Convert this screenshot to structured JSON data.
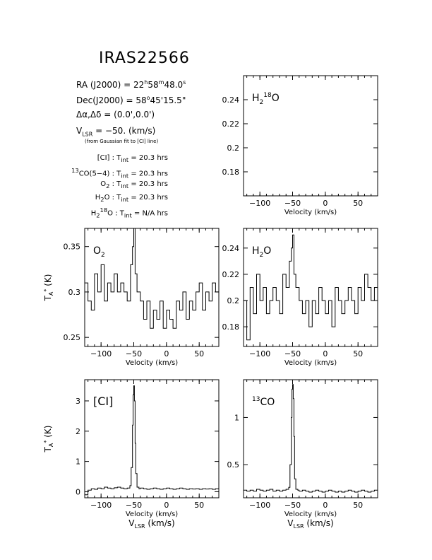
{
  "header": {
    "title": "IRAS22566",
    "ra": {
      "lbl": "RA (J2000)  =  22",
      "h": "h",
      "a": "58",
      "m": "m",
      "b": "48.0",
      "s": "s"
    },
    "dec": {
      "lbl": "Dec(J2000)  =  58",
      "deg": "o",
      "rest": "45'15.5\""
    },
    "offset": "Δα,Δδ  =  (0.0',0.0')",
    "vlsr": {
      "v": "V",
      "sub": "LSR",
      "rest": "  = −50. (km/s)"
    },
    "vlsr_note": "(from Gaussian fit to [CI] line)",
    "tint": [
      {
        "pre": "",
        "sup": "",
        "name": "[CI]",
        "sub": "",
        "val": "20.3 hrs"
      },
      {
        "pre": "13",
        "sup": "",
        "name": "CO(5−4)",
        "sub": "",
        "val": "20.3 hrs"
      },
      {
        "pre": "",
        "sup": "",
        "name": "O",
        "sub": "2",
        "val": "20.3 hrs"
      },
      {
        "pre": "",
        "sup": "",
        "name": "H",
        "sub": "2",
        "post": "O",
        "val": "20.3 hrs"
      },
      {
        "pre": "",
        "sup": "18",
        "name": "H",
        "sub": "2",
        "post": "O",
        "val": "N/A hrs"
      }
    ],
    "tint_label": "T",
    "tint_sub": "int",
    "tint_eq": " = "
  },
  "chart_data": [
    {
      "type": "line",
      "name": "H2 18O",
      "label_html": [
        "H",
        "2",
        "18",
        "O"
      ],
      "xlim": [
        -125,
        80
      ],
      "ylim": [
        0.16,
        0.26
      ],
      "xticks": [
        -100,
        -50,
        0,
        50
      ],
      "xtick_labels": [
        "−100",
        "−50",
        "0",
        "50"
      ],
      "yticks": [
        0.18,
        0.2,
        0.22,
        0.24
      ],
      "ytick_labels": [
        "0.18",
        "0.2",
        "0.22",
        "0.24"
      ],
      "xlabel": "Velocity (km/s)",
      "ylabel": "",
      "x": [],
      "y": []
    },
    {
      "type": "line",
      "name": "O2",
      "label_html": [
        "O",
        "2",
        "",
        ""
      ],
      "xlim": [
        -125,
        80
      ],
      "ylim": [
        0.24,
        0.37
      ],
      "xticks": [
        -100,
        -50,
        0,
        50
      ],
      "xtick_labels": [
        "−100",
        "−50",
        "0",
        "50"
      ],
      "yticks": [
        0.25,
        0.3,
        0.35
      ],
      "ytick_labels": [
        "0.25",
        "0.3",
        "0.35"
      ],
      "xlabel": "Velocity (km/s)",
      "ylabel": "T_A* (K)",
      "x": [
        -125,
        -120,
        -115,
        -110,
        -105,
        -100,
        -95,
        -90,
        -85,
        -80,
        -75,
        -70,
        -65,
        -60,
        -55,
        -52,
        -50,
        -48,
        -45,
        -40,
        -35,
        -30,
        -25,
        -20,
        -15,
        -10,
        -5,
        0,
        5,
        10,
        15,
        20,
        25,
        30,
        35,
        40,
        45,
        50,
        55,
        60,
        65,
        70,
        75,
        80
      ],
      "y": [
        0.31,
        0.29,
        0.28,
        0.32,
        0.3,
        0.33,
        0.29,
        0.31,
        0.3,
        0.32,
        0.3,
        0.31,
        0.3,
        0.29,
        0.33,
        0.35,
        0.37,
        0.32,
        0.3,
        0.29,
        0.27,
        0.29,
        0.26,
        0.28,
        0.27,
        0.29,
        0.26,
        0.28,
        0.27,
        0.26,
        0.29,
        0.28,
        0.3,
        0.27,
        0.29,
        0.28,
        0.3,
        0.31,
        0.28,
        0.3,
        0.29,
        0.31,
        0.3,
        0.29
      ]
    },
    {
      "type": "line",
      "name": "H2O",
      "label_html": [
        "H",
        "2",
        "",
        "O"
      ],
      "xlim": [
        -125,
        80
      ],
      "ylim": [
        0.165,
        0.255
      ],
      "xticks": [
        -100,
        -50,
        0,
        50
      ],
      "xtick_labels": [
        "−100",
        "−50",
        "0",
        "50"
      ],
      "yticks": [
        0.18,
        0.2,
        0.22,
        0.24
      ],
      "ytick_labels": [
        "0.18",
        "0.2",
        "0.22",
        "0.24"
      ],
      "xlabel": "Velocity (km/s)",
      "ylabel": "",
      "x": [
        -125,
        -120,
        -115,
        -110,
        -105,
        -100,
        -95,
        -90,
        -85,
        -80,
        -75,
        -70,
        -65,
        -60,
        -55,
        -52,
        -50,
        -48,
        -45,
        -40,
        -35,
        -30,
        -25,
        -20,
        -15,
        -10,
        -5,
        0,
        5,
        10,
        15,
        20,
        25,
        30,
        35,
        40,
        45,
        50,
        55,
        60,
        65,
        70,
        75,
        80
      ],
      "y": [
        0.2,
        0.17,
        0.21,
        0.19,
        0.22,
        0.2,
        0.21,
        0.19,
        0.2,
        0.21,
        0.2,
        0.19,
        0.22,
        0.21,
        0.23,
        0.24,
        0.25,
        0.22,
        0.21,
        0.2,
        0.19,
        0.2,
        0.18,
        0.2,
        0.19,
        0.21,
        0.2,
        0.19,
        0.2,
        0.18,
        0.21,
        0.2,
        0.19,
        0.2,
        0.21,
        0.2,
        0.19,
        0.21,
        0.2,
        0.22,
        0.21,
        0.2,
        0.21,
        0.22
      ]
    },
    {
      "type": "line",
      "name": "[CI]",
      "label_html": [
        "[CI]",
        "",
        "",
        ""
      ],
      "xlim": [
        -125,
        80
      ],
      "ylim": [
        -0.2,
        3.7
      ],
      "xticks": [
        -100,
        -50,
        0,
        50
      ],
      "xtick_labels": [
        "−100",
        "−50",
        "0",
        "50"
      ],
      "yticks": [
        0,
        1,
        2,
        3
      ],
      "ytick_labels": [
        "0",
        "1",
        "2",
        "3"
      ],
      "xlabel": "Velocity (km/s)",
      "xlabel2": "V_LSR (km/s)",
      "ylabel": "T_A* (K)",
      "x": [
        -125,
        -122,
        -120,
        -115,
        -110,
        -105,
        -100,
        -95,
        -90,
        -85,
        -80,
        -75,
        -70,
        -65,
        -60,
        -56,
        -54,
        -52,
        -51,
        -50,
        -49,
        -48,
        -47,
        -45,
        -42,
        -40,
        -35,
        -30,
        -25,
        -20,
        -15,
        -10,
        -5,
        0,
        5,
        10,
        15,
        20,
        25,
        30,
        35,
        40,
        45,
        50,
        55,
        60,
        65,
        70,
        75,
        80
      ],
      "y": [
        -0.1,
        -0.1,
        0.05,
        0.1,
        0.08,
        0.12,
        0.1,
        0.15,
        0.12,
        0.1,
        0.13,
        0.15,
        0.12,
        0.1,
        0.12,
        0.2,
        0.8,
        2.2,
        3.2,
        3.5,
        3.0,
        1.6,
        0.6,
        0.15,
        0.1,
        0.12,
        0.1,
        0.08,
        0.1,
        0.12,
        0.1,
        0.08,
        0.1,
        0.12,
        0.1,
        0.08,
        0.1,
        0.12,
        0.1,
        0.08,
        0.1,
        0.09,
        0.1,
        0.08,
        0.1,
        0.09,
        0.1,
        0.08,
        0.1,
        0.12
      ]
    },
    {
      "type": "line",
      "name": "13CO",
      "label_html": [
        "",
        "",
        "13",
        "CO"
      ],
      "xlim": [
        -125,
        80
      ],
      "ylim": [
        0.15,
        1.4
      ],
      "xticks": [
        -100,
        -50,
        0,
        50
      ],
      "xtick_labels": [
        "−100",
        "−50",
        "0",
        "50"
      ],
      "yticks": [
        0.5,
        1
      ],
      "ytick_labels": [
        "0.5",
        "1"
      ],
      "xlabel": "Velocity (km/s)",
      "xlabel2": "V_LSR (km/s)",
      "ylabel": "",
      "x": [
        -125,
        -120,
        -115,
        -110,
        -105,
        -100,
        -95,
        -90,
        -85,
        -80,
        -75,
        -70,
        -65,
        -60,
        -56,
        -54,
        -52,
        -51,
        -50,
        -49,
        -48,
        -47,
        -45,
        -42,
        -40,
        -35,
        -30,
        -25,
        -20,
        -15,
        -10,
        -5,
        0,
        5,
        10,
        15,
        20,
        25,
        30,
        35,
        40,
        45,
        50,
        55,
        60,
        65,
        70,
        75,
        80
      ],
      "y": [
        0.23,
        0.22,
        0.23,
        0.22,
        0.24,
        0.23,
        0.22,
        0.23,
        0.24,
        0.22,
        0.23,
        0.22,
        0.23,
        0.24,
        0.26,
        0.5,
        1.0,
        1.3,
        1.35,
        1.2,
        0.8,
        0.35,
        0.24,
        0.23,
        0.22,
        0.23,
        0.22,
        0.21,
        0.22,
        0.23,
        0.22,
        0.21,
        0.22,
        0.23,
        0.22,
        0.21,
        0.22,
        0.21,
        0.22,
        0.23,
        0.22,
        0.21,
        0.22,
        0.23,
        0.22,
        0.21,
        0.22,
        0.23,
        0.22
      ]
    }
  ]
}
